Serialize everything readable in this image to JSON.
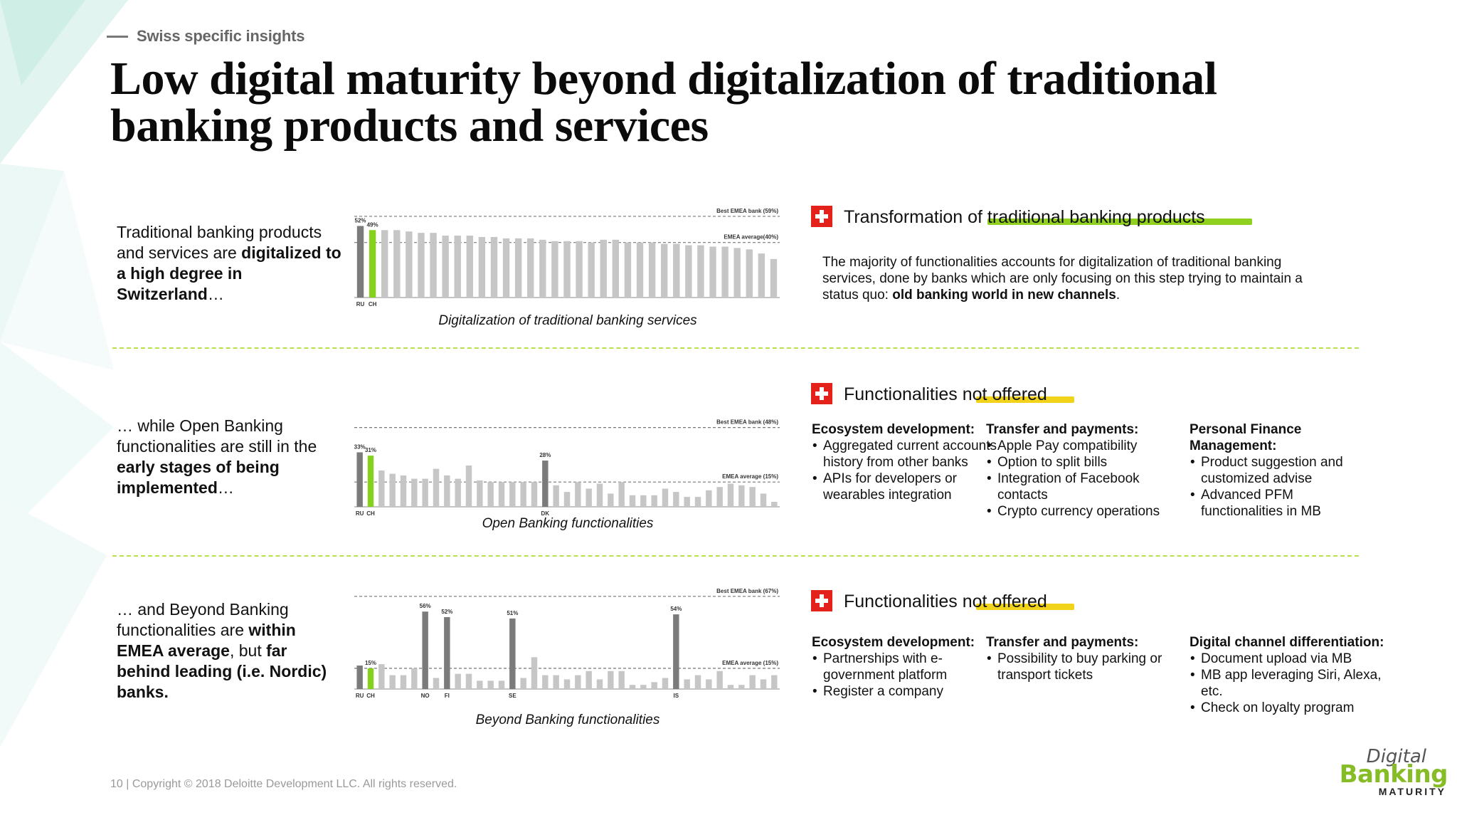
{
  "header": {
    "kicker": "Swiss specific insights",
    "title": "Low digital maturity beyond digitalization of traditional banking products and services"
  },
  "rows": [
    {
      "text_parts": [
        {
          "t": "Traditional banking products and services are ",
          "b": false
        },
        {
          "t": "digitalized to a high degree in Switzerland",
          "b": true
        },
        {
          "t": "…",
          "b": false
        }
      ],
      "caption": "Digitalization of traditional banking services",
      "right_title": "Transformation of traditional banking products",
      "highlight_color": "#8fd11e",
      "paragraph_parts": [
        {
          "t": "The majority of functionalities accounts for digitalization of traditional banking services, done by banks which are only focusing on this step trying to maintain a status quo: ",
          "b": false
        },
        {
          "t": "old banking world in new channels",
          "b": true
        },
        {
          "t": ".",
          "b": false
        }
      ]
    },
    {
      "text_parts": [
        {
          "t": "… while Open Banking functionalities are still in the ",
          "b": false
        },
        {
          "t": "early stages of being implemented",
          "b": true
        },
        {
          "t": "…",
          "b": false
        }
      ],
      "caption": "Open Banking functionalities",
      "right_title": "Functionalities not offered",
      "highlight_color": "#f2d31b",
      "columns": [
        {
          "title": "Ecosystem development:",
          "items": [
            "Aggregated current accounts history from other banks",
            "APIs for developers or wearables integration"
          ]
        },
        {
          "title": "Transfer and payments:",
          "items": [
            "Apple Pay compatibility",
            "Option to split bills",
            "Integration of Facebook contacts",
            "Crypto currency operations"
          ]
        },
        {
          "title": "Personal Finance Management:",
          "items": [
            "Product suggestion and customized advise",
            "Advanced PFM functionalities in MB"
          ]
        }
      ]
    },
    {
      "text_parts": [
        {
          "t": "… and Beyond Banking functionalities are ",
          "b": false
        },
        {
          "t": "within EMEA average",
          "b": true
        },
        {
          "t": ", but ",
          "b": false
        },
        {
          "t": "far behind leading (i.e. Nordic) banks.",
          "b": true
        }
      ],
      "caption": "Beyond Banking functionalities",
      "right_title": "Functionalities not offered",
      "highlight_color": "#f2d31b",
      "columns": [
        {
          "title": "Ecosystem development:",
          "items": [
            "Partnerships with e-government platform",
            "Register a company"
          ]
        },
        {
          "title": "Transfer and payments:",
          "items": [
            "Possibility to buy parking or transport tickets"
          ]
        },
        {
          "title": "Digital channel differentiation:",
          "items": [
            "Document upload via MB",
            "MB app leveraging Siri, Alexa, etc.",
            "Check on loyalty program"
          ]
        }
      ]
    }
  ],
  "chart_data": [
    {
      "type": "bar",
      "caption": "Digitalization of traditional banking services",
      "ylim": [
        0,
        60
      ],
      "reference_lines": [
        {
          "label": "Best EMEA bank (59%)",
          "value": 59
        },
        {
          "label": "EMEA average(40%)",
          "value": 40
        }
      ],
      "tick_labels": [
        "RU",
        "CH"
      ],
      "data_labels": [
        {
          "index": 0,
          "label": "52%"
        },
        {
          "index": 1,
          "label": "49%"
        }
      ],
      "highlight": {
        "0": "dark",
        "1": "green"
      },
      "values": [
        52,
        49,
        49,
        49,
        48,
        47,
        47,
        45,
        45,
        45,
        44,
        44,
        43,
        43,
        43,
        42,
        41,
        41,
        41,
        40,
        42,
        42,
        40,
        40,
        40,
        39,
        39,
        38,
        38,
        37,
        37,
        36,
        35,
        32,
        28
      ]
    },
    {
      "type": "bar",
      "caption": "Open Banking functionalities",
      "ylim": [
        0,
        50
      ],
      "reference_lines": [
        {
          "label": "Best EMEA bank (48%)",
          "value": 48
        },
        {
          "label": "EMEA average (15%)",
          "value": 15
        }
      ],
      "tick_labels": [
        "RU",
        "CH",
        "DK"
      ],
      "tick_indices": [
        0,
        1,
        17
      ],
      "data_labels": [
        {
          "index": 0,
          "label": "33%"
        },
        {
          "index": 1,
          "label": "31%"
        },
        {
          "index": 17,
          "label": "28%"
        }
      ],
      "highlight": {
        "0": "dark",
        "1": "green",
        "17": "dark"
      },
      "values": [
        33,
        31,
        22,
        20,
        19,
        17,
        17,
        23,
        19,
        17,
        25,
        16,
        15,
        15,
        15,
        15,
        15,
        28,
        13,
        9,
        15,
        11,
        14,
        8,
        15,
        7,
        7,
        7,
        11,
        9,
        6,
        6,
        10,
        12,
        14,
        13,
        12,
        8,
        3
      ]
    },
    {
      "type": "bar",
      "caption": "Beyond Banking functionalities",
      "ylim": [
        0,
        70
      ],
      "reference_lines": [
        {
          "label": "Best EMEA bank (67%)",
          "value": 67
        },
        {
          "label": "EMEA average (15%)",
          "value": 15
        }
      ],
      "tick_labels": [
        "RU",
        "CH",
        "NO",
        "FI",
        "SE",
        "IS"
      ],
      "tick_indices": [
        0,
        1,
        6,
        8,
        14,
        29
      ],
      "data_labels": [
        {
          "index": 1,
          "label": "15%"
        },
        {
          "index": 6,
          "label": "56%"
        },
        {
          "index": 8,
          "label": "52%"
        },
        {
          "index": 14,
          "label": "51%"
        },
        {
          "index": 29,
          "label": "54%"
        }
      ],
      "highlight": {
        "0": "dark",
        "1": "green",
        "6": "dark",
        "8": "dark",
        "14": "dark",
        "29": "dark"
      },
      "values": [
        17,
        15,
        18,
        10,
        10,
        15,
        56,
        8,
        52,
        11,
        11,
        6,
        6,
        6,
        51,
        8,
        23,
        10,
        10,
        7,
        10,
        13,
        7,
        13,
        13,
        3,
        3,
        5,
        8,
        54,
        7,
        10,
        7,
        13,
        3,
        3,
        10,
        7,
        10
      ]
    }
  ],
  "footer": {
    "text": "10  |  Copyright © 2018 Deloitte Development LLC. All rights reserved."
  },
  "logo": {
    "line1": "Digital",
    "line2": "Banking",
    "line3": "MATURITY"
  },
  "colors": {
    "accent_green": "#86bc25",
    "swiss_red": "#e3221c",
    "bar_gray": "#c6c6c6",
    "bar_dark": "#7b7b7b",
    "bar_green": "#86d11e"
  }
}
